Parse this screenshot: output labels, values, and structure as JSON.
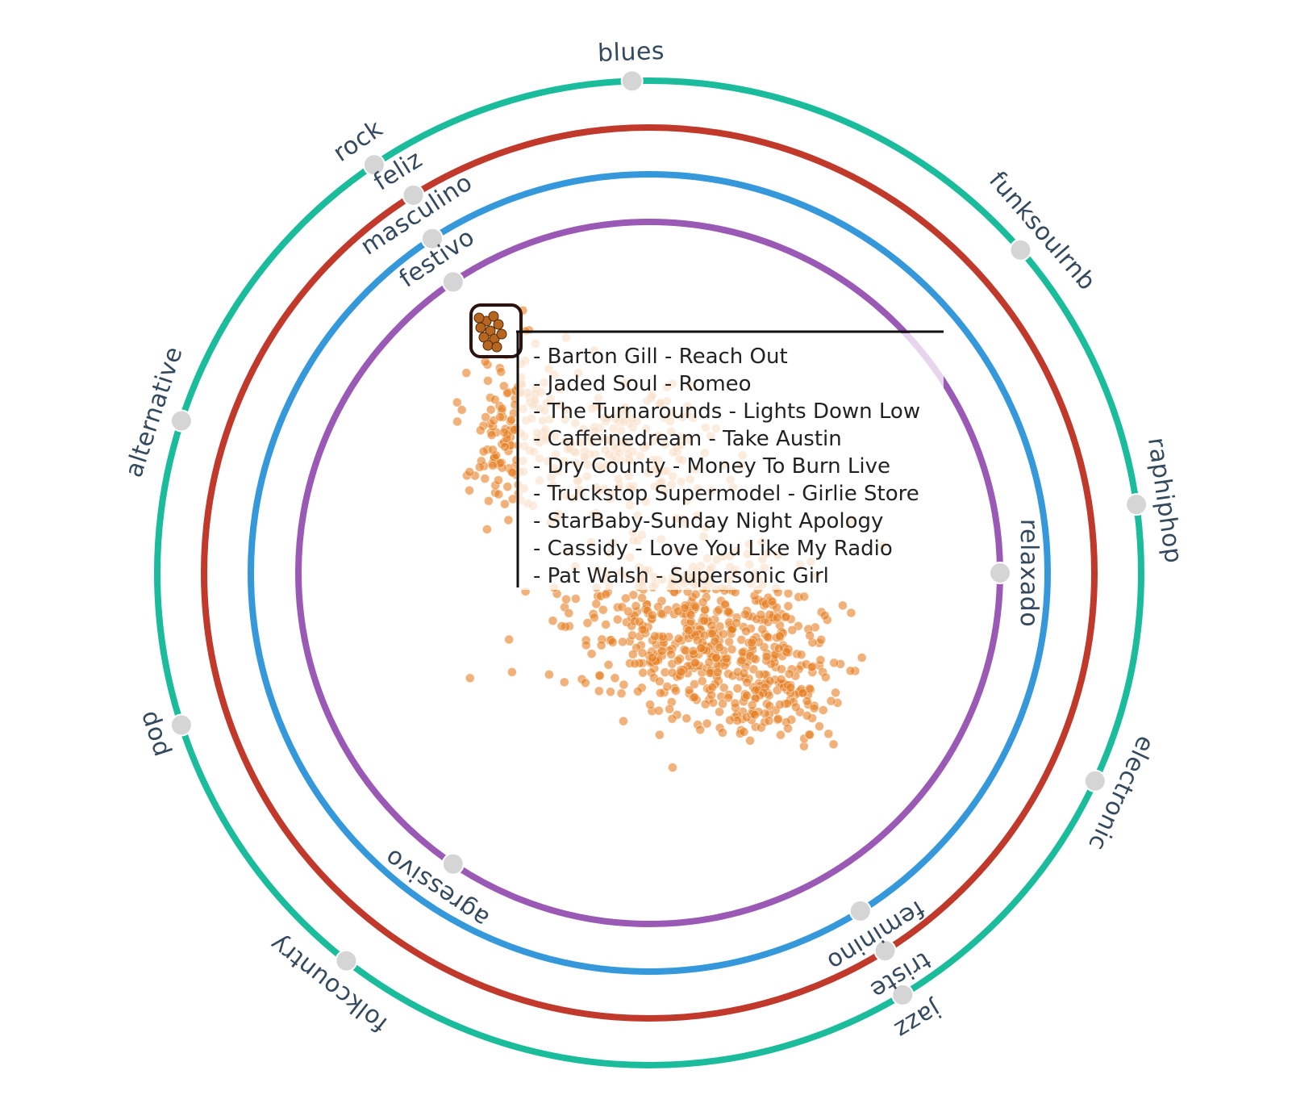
{
  "chart_data": {
    "type": "scatter",
    "title": "",
    "rings": [
      {
        "name": "genre",
        "color": "#1abc9c",
        "anchors": [
          {
            "label": "blues",
            "angle_deg": 92
          },
          {
            "label": "funksoulrnb",
            "angle_deg": 41
          },
          {
            "label": "raphiphop",
            "angle_deg": 8
          },
          {
            "label": "electronic",
            "angle_deg": -25
          },
          {
            "label": "jazz",
            "angle_deg": -59
          },
          {
            "label": "folkcountry",
            "angle_deg": -128
          },
          {
            "label": "pop",
            "angle_deg": -162
          },
          {
            "label": "alternative",
            "angle_deg": 162
          },
          {
            "label": "rock",
            "angle_deg": 124
          }
        ]
      },
      {
        "name": "mood",
        "color": "#c0392b",
        "anchors": [
          {
            "label": "feliz",
            "angle_deg": 122
          },
          {
            "label": "triste",
            "angle_deg": -58
          }
        ]
      },
      {
        "name": "gender",
        "color": "#3498db",
        "anchors": [
          {
            "label": "masculino",
            "angle_deg": 123
          },
          {
            "label": "feminino",
            "angle_deg": -58
          }
        ]
      },
      {
        "name": "occasion",
        "color": "#9b59b6",
        "anchors": [
          {
            "label": "festivo",
            "angle_deg": 124
          },
          {
            "label": "relaxado",
            "angle_deg": 0
          },
          {
            "label": "agressivo",
            "angle_deg": -124
          }
        ]
      }
    ],
    "points_color": "#e67e22",
    "selection_tooltip": {
      "items": [
        "- Barton Gill - Reach Out",
        "- Jaded Soul - Romeo",
        "- The Turnarounds - Lights Down Low",
        "- Caffeinedream - Take Austin",
        "- Dry County - Money To Burn  Live",
        "- Truckstop Supermodel - Girlie Store",
        "- StarBaby-Sunday Night Apology",
        "- Cassidy - Love You Like My Radio",
        "- Pat Walsh - Supersonic Girl"
      ]
    }
  }
}
